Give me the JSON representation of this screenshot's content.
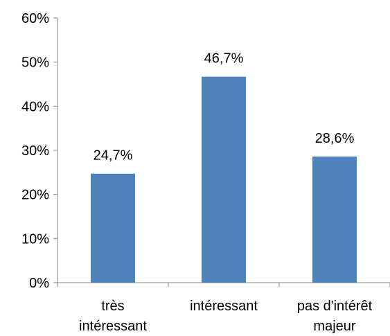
{
  "chart_data": {
    "type": "bar",
    "title": "",
    "xlabel": "",
    "ylabel": "",
    "categories": [
      [
        "très",
        "intéressant"
      ],
      [
        "intéressant"
      ],
      [
        "pas d'intérêt",
        "majeur"
      ]
    ],
    "values": [
      24.7,
      46.7,
      28.6
    ],
    "data_labels": [
      "24,7%",
      "46,7%",
      "28,6%"
    ],
    "ylim": [
      0,
      60
    ],
    "yticks": [
      0,
      10,
      20,
      30,
      40,
      50,
      60
    ],
    "ytick_labels": [
      "0%",
      "10%",
      "20%",
      "30%",
      "40%",
      "50%",
      "60%"
    ],
    "grid": false,
    "legend": "none",
    "bar_color": "#4F81BD",
    "axis_color": "#868686"
  }
}
